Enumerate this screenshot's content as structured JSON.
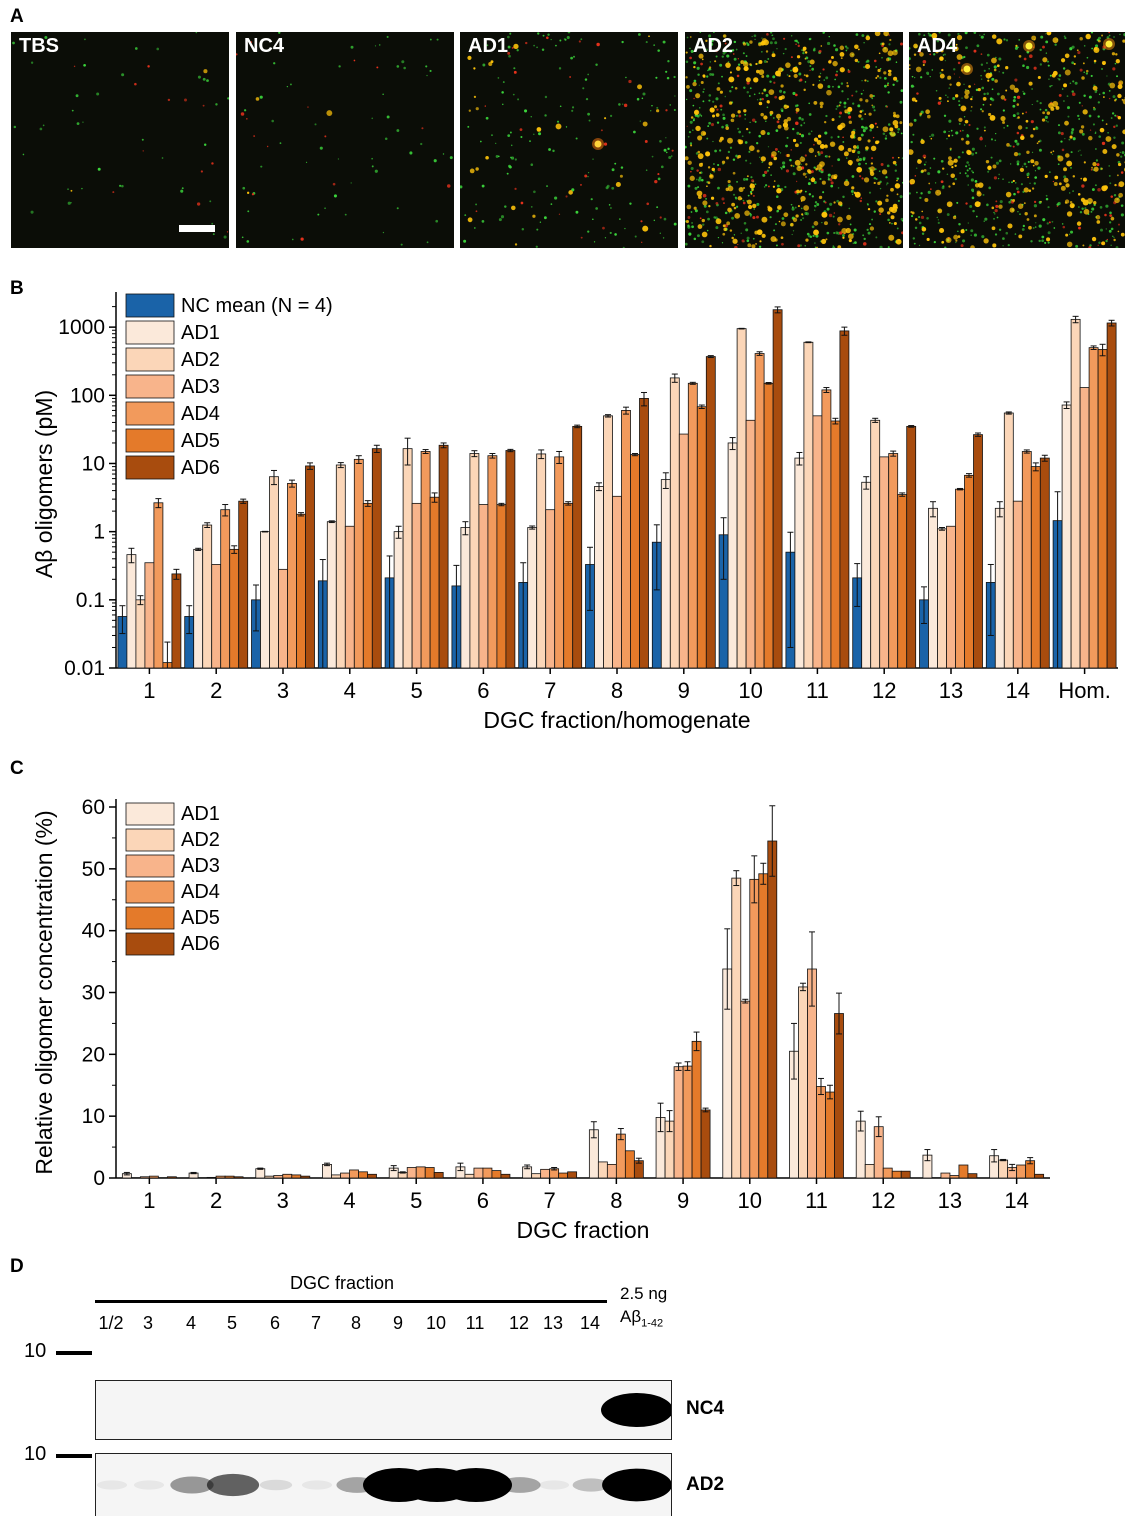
{
  "panelA": {
    "letter": "A",
    "images": [
      {
        "label": "TBS",
        "density": 0.02
      },
      {
        "label": "NC4",
        "density": 0.05
      },
      {
        "label": "AD1",
        "density": 0.25
      },
      {
        "label": "AD2",
        "density": 1.0
      },
      {
        "label": "AD4",
        "density": 0.85
      }
    ],
    "colors": {
      "green": "#3bd43b",
      "red": "#e8321c",
      "yellow": "#ffc40a",
      "background": "#0b0d07"
    }
  },
  "panelB": {
    "letter": "B"
  },
  "panelC": {
    "letter": "C"
  },
  "panelD": {
    "letter": "D",
    "header": "DGC fraction",
    "lanes": [
      "1/2",
      "3",
      "4",
      "5",
      "6",
      "7",
      "8",
      "9",
      "10",
      "11",
      "12",
      "13",
      "14"
    ],
    "standard_label_1": "2.5 ng",
    "standard_label_2": "Aβ",
    "standard_subscript": "1-42",
    "marker_labels": [
      "10",
      "10"
    ],
    "blots": [
      {
        "label": "NC4",
        "band_intensity": [
          0,
          0,
          0,
          0,
          0,
          0,
          0,
          0,
          0,
          0,
          0,
          0,
          0,
          1.0
        ]
      },
      {
        "label": "AD2",
        "band_intensity": [
          0.05,
          0.05,
          0.35,
          0.55,
          0.1,
          0.05,
          0.3,
          1.0,
          1.0,
          1.0,
          0.3,
          0.05,
          0.2,
          0.95
        ]
      }
    ]
  },
  "chart_data": [
    {
      "type": "bar",
      "panel": "B",
      "ylabel": "Aβ oligomers (pM)",
      "xlabel": "DGC fraction/homogenate",
      "yscale": "log",
      "ylim": [
        0.01,
        2500
      ],
      "yticks": [
        "0.01",
        "0.1",
        "1",
        "10",
        "100",
        "1000"
      ],
      "categories": [
        "1",
        "2",
        "3",
        "4",
        "5",
        "6",
        "7",
        "8",
        "9",
        "10",
        "11",
        "12",
        "13",
        "14",
        "Hom."
      ],
      "legend_position": "top-left",
      "series": [
        {
          "name": "NC mean (N = 4)",
          "color": "#1a63a8",
          "values": [
            0.057,
            0.057,
            0.1,
            0.19,
            0.21,
            0.16,
            0.18,
            0.33,
            0.7,
            0.9,
            0.5,
            0.21,
            0.1,
            0.18,
            1.45
          ],
          "errors": [
            0.025,
            0.025,
            0.065,
            0.2,
            0.23,
            0.16,
            0.17,
            0.26,
            0.56,
            0.7,
            0.48,
            0.13,
            0.055,
            0.15,
            2.4
          ]
        },
        {
          "name": "AD1",
          "color": "#fbe9da",
          "values": [
            0.46,
            0.55,
            1.0,
            1.4,
            1.0,
            1.15,
            1.15,
            4.6,
            5.8,
            20,
            12,
            5.3,
            2.2,
            2.2,
            72
          ],
          "errors": [
            0.11,
            0.02,
            0.01,
            0.04,
            0.2,
            0.25,
            0.06,
            0.6,
            1.5,
            4,
            2.5,
            1.1,
            0.55,
            0.55,
            8
          ]
        },
        {
          "name": "AD2",
          "color": "#fbd6b8",
          "values": [
            0.1,
            1.25,
            6.4,
            9.5,
            16.5,
            14,
            13.8,
            50,
            180,
            950,
            600,
            43,
            1.1,
            55,
            1300
          ],
          "errors": [
            0.015,
            0.1,
            1.5,
            0.8,
            7,
            1.4,
            2,
            2,
            25,
            10,
            8,
            3,
            0.05,
            2,
            140
          ]
        },
        {
          "name": "AD3",
          "color": "#f8b48b",
          "values": [
            0.35,
            0.33,
            0.28,
            1.2,
            2.6,
            2.5,
            2.1,
            3.3,
            27,
            43,
            50,
            12.5,
            1.2,
            2.8,
            130
          ]
        },
        {
          "name": "AD4",
          "color": "#f29a5c",
          "values": [
            2.65,
            2.1,
            5.1,
            11.5,
            15,
            13,
            12.5,
            60,
            150,
            410,
            120,
            14,
            4.2,
            15,
            500
          ],
          "errors": [
            0.4,
            0.4,
            0.6,
            1.5,
            1,
            1,
            2.5,
            7,
            5,
            25,
            10,
            1.2,
            0.1,
            0.8,
            30
          ]
        },
        {
          "name": "AD5",
          "color": "#e47a2a",
          "values": [
            0.012,
            0.55,
            1.8,
            2.6,
            3.2,
            2.5,
            2.6,
            13.5,
            68,
            150,
            42,
            3.5,
            6.7,
            9,
            470
          ],
          "errors": [
            0.012,
            0.07,
            0.1,
            0.25,
            0.5,
            0.1,
            0.15,
            0.5,
            4,
            4,
            4,
            0.2,
            0.4,
            1.2,
            90
          ]
        },
        {
          "name": "AD6",
          "color": "#a84c0e",
          "values": [
            0.24,
            2.8,
            9.2,
            16.5,
            18.5,
            15.5,
            35,
            90,
            370,
            1800,
            880,
            35,
            26.5,
            12,
            1150
          ],
          "errors": [
            0.04,
            0.2,
            1,
            2,
            1.5,
            0.6,
            1.5,
            20,
            12,
            180,
            120,
            1,
            1.5,
            1.2,
            110
          ]
        }
      ]
    },
    {
      "type": "bar",
      "panel": "C",
      "ylabel": "Relative oligomer concentration (%)",
      "xlabel": "DGC fraction",
      "ylim": [
        0,
        60
      ],
      "yticks": [
        "0",
        "10",
        "20",
        "30",
        "40",
        "50",
        "60"
      ],
      "categories": [
        "1",
        "2",
        "3",
        "4",
        "5",
        "6",
        "7",
        "8",
        "9",
        "10",
        "11",
        "12",
        "13",
        "14"
      ],
      "legend_position": "top-left",
      "series": [
        {
          "name": "AD1",
          "color": "#fbe9da",
          "values": [
            0.7,
            0.8,
            1.5,
            2.2,
            1.6,
            1.8,
            1.8,
            7.8,
            9.8,
            33.8,
            20.5,
            9.2,
            3.7,
            3.6
          ],
          "errors": [
            0.2,
            0.1,
            0.1,
            0.2,
            0.4,
            0.6,
            0.3,
            1.3,
            2.3,
            6.5,
            4.5,
            1.6,
            0.9,
            1
          ]
        },
        {
          "name": "AD2",
          "color": "#fbd6b8",
          "values": [
            0.05,
            0.05,
            0.3,
            0.5,
            0.9,
            0.6,
            0.7,
            2.6,
            9.2,
            48.5,
            30.9,
            2.2,
            0.05,
            2.9
          ],
          "errors": [
            0,
            0,
            0,
            0,
            0.1,
            0,
            0,
            0,
            1.7,
            1.2,
            0.6,
            0,
            0,
            0.1
          ]
        },
        {
          "name": "AD3",
          "color": "#f8b48b",
          "values": [
            0.2,
            0.1,
            0.4,
            0.8,
            1.7,
            1.6,
            1.4,
            2.2,
            18,
            28.6,
            33.8,
            8.3,
            0.8,
            1.7
          ],
          "errors": [
            0,
            0,
            0,
            0,
            0,
            0,
            0,
            0,
            0.6,
            0.3,
            6,
            1.6,
            0,
            0.5
          ]
        },
        {
          "name": "AD4",
          "color": "#f29a5c",
          "values": [
            0.3,
            0.3,
            0.6,
            1.3,
            1.8,
            1.6,
            1.5,
            7.1,
            18.1,
            48.3,
            14.8,
            1.6,
            0.4,
            2.1
          ],
          "errors": [
            0,
            0,
            0,
            0,
            0,
            0,
            0.2,
            0.9,
            0.7,
            3.8,
            1.3,
            0,
            0,
            0
          ]
        },
        {
          "name": "AD5",
          "color": "#e47a2a",
          "values": [
            0.05,
            0.3,
            0.5,
            1.0,
            1.7,
            1.2,
            0.8,
            4.4,
            22.1,
            49.2,
            13.9,
            1.1,
            2.1,
            2.8
          ],
          "errors": [
            0,
            0,
            0,
            0,
            0,
            0,
            0,
            0,
            1.5,
            1.7,
            1.1,
            0,
            0,
            0.5
          ]
        },
        {
          "name": "AD6",
          "color": "#a84c0e",
          "values": [
            0.2,
            0.2,
            0.3,
            0.6,
            0.9,
            0.6,
            1.0,
            2.8,
            11.0,
            54.5,
            26.6,
            1.1,
            0.7,
            0.6
          ],
          "errors": [
            0,
            0,
            0,
            0,
            0,
            0,
            0,
            0.4,
            0.3,
            5.7,
            3.3,
            0,
            0,
            0
          ]
        }
      ]
    }
  ]
}
